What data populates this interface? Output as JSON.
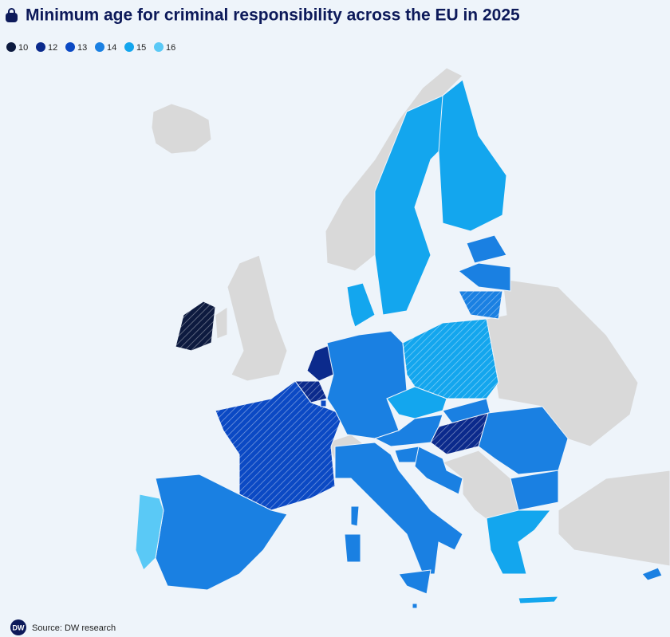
{
  "header": {
    "title": "Minimum age for criminal responsibility across the EU in 2025"
  },
  "legend": [
    {
      "value": 10,
      "color": "#0d1a3f"
    },
    {
      "value": 12,
      "color": "#0b2a8c"
    },
    {
      "value": 13,
      "color": "#0b49c4"
    },
    {
      "value": 14,
      "color": "#1a80e2"
    },
    {
      "value": 15,
      "color": "#13a6ee"
    },
    {
      "value": 16,
      "color": "#5ac9f6"
    }
  ],
  "regions": [
    {
      "age": 10,
      "hatched": true
    },
    {
      "age": 12,
      "hatched": false
    },
    {
      "age": 12,
      "hatched": true
    },
    {
      "age": 13,
      "hatched": true
    },
    {
      "age": 14,
      "hatched": false
    },
    {
      "age": 16,
      "hatched": false
    },
    {
      "age": 14,
      "hatched": false
    },
    {
      "age": 15,
      "hatched": false
    },
    {
      "age": 15,
      "hatched": false
    },
    {
      "age": 15,
      "hatched": false
    },
    {
      "age": 14,
      "hatched": false
    },
    {
      "age": 14,
      "hatched": false
    },
    {
      "age": 14,
      "hatched": true
    },
    {
      "age": 15,
      "hatched": true
    },
    {
      "age": 15,
      "hatched": false
    },
    {
      "age": 14,
      "hatched": false
    },
    {
      "age": 14,
      "hatched": false
    },
    {
      "age": 12,
      "hatched": true
    },
    {
      "age": 14,
      "hatched": false
    },
    {
      "age": 14,
      "hatched": false
    },
    {
      "age": 14,
      "hatched": false
    },
    {
      "age": 14,
      "hatched": false
    },
    {
      "age": 14,
      "hatched": false
    },
    {
      "age": 14,
      "hatched": false
    },
    {
      "age": 14,
      "hatched": false
    },
    {
      "age": 14,
      "hatched": false
    },
    {
      "age": 15,
      "hatched": false
    },
    {
      "age": 15,
      "hatched": false
    },
    {
      "age": 14,
      "hatched": false
    },
    {
      "age": 14,
      "hatched": false
    },
    {
      "age": 13,
      "hatched": false
    }
  ],
  "footer": {
    "logo": "DW",
    "source": "Source: DW research"
  }
}
